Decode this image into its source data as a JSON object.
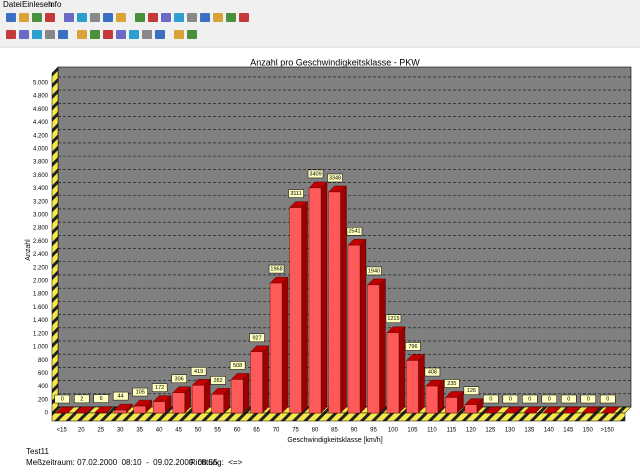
{
  "menu": [
    "Datei",
    "Einlesen",
    "Info"
  ],
  "chart_data": {
    "type": "bar3d",
    "title": "Anzahl pro Geschwindigkeitsklasse - PKW",
    "x_label": "Geschwindigkeitsklasse [km/h]",
    "y_label": "Anzahl",
    "categories": [
      "<15",
      "20",
      "25",
      "30",
      "35",
      "40",
      "45",
      "50",
      "55",
      "60",
      "65",
      "70",
      "75",
      "80",
      "85",
      "90",
      "95",
      "100",
      "105",
      "110",
      "115",
      "120",
      "125",
      "130",
      "135",
      "140",
      "145",
      "150",
      ">150"
    ],
    "values": [
      0,
      2,
      6,
      44,
      105,
      172,
      306,
      419,
      282,
      508,
      927,
      1968,
      3111,
      3409,
      3348,
      2541,
      1940,
      1215,
      796,
      408,
      235,
      126,
      0,
      0,
      0,
      0,
      0,
      0,
      0
    ],
    "color": "#ff5a5a",
    "ylim": [
      0,
      5150
    ],
    "yticks": [
      0,
      200,
      400,
      600,
      800,
      {
        "value": 1000,
        "label": "1.000"
      },
      {
        "value": 1200,
        "label": "1.200"
      },
      {
        "value": 1400,
        "label": "1.400"
      },
      {
        "value": 1600,
        "label": "1.600"
      },
      {
        "value": 1800,
        "label": "1.800"
      },
      {
        "value": 2000,
        "label": "2.000"
      },
      {
        "value": 2200,
        "label": "2.200"
      },
      {
        "value": 2400,
        "label": "2.400"
      },
      {
        "value": 2600,
        "label": "2.600"
      },
      {
        "value": 2800,
        "label": "2.800"
      },
      {
        "value": 3000,
        "label": "3.000"
      },
      {
        "value": 3200,
        "label": "3.200"
      },
      {
        "value": 3400,
        "label": "3.400"
      },
      {
        "value": 3600,
        "label": "3.600"
      },
      {
        "value": 3800,
        "label": "3.800"
      },
      {
        "value": 4000,
        "label": "4.000"
      },
      {
        "value": 4200,
        "label": "4.200"
      },
      {
        "value": 4400,
        "label": "4.400"
      },
      {
        "value": 4600,
        "label": "4.600"
      },
      {
        "value": 4800,
        "label": "4.800"
      },
      {
        "value": 5000,
        "label": "5.000"
      }
    ],
    "grid": true
  },
  "footer": {
    "name": "Test11",
    "period": "Meßzeitraum: 07.02.2000  08:10  -  09.02.2000  08:55",
    "direction": "Richtung:  <=>"
  }
}
